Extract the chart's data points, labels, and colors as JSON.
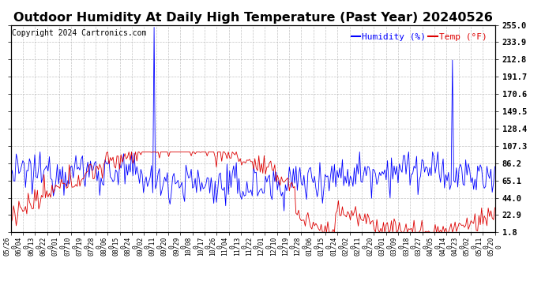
{
  "title": "Outdoor Humidity At Daily High Temperature (Past Year) 20240526",
  "copyright": "Copyright 2024 Cartronics.com",
  "legend_humidity": "Humidity (%)",
  "legend_temp": "Temp (°F)",
  "humidity_color": "#0000ff",
  "temp_color": "#dd0000",
  "background_color": "#ffffff",
  "grid_color": "#aaaaaa",
  "yticks_right": [
    255.0,
    233.9,
    212.8,
    191.7,
    170.6,
    149.5,
    128.4,
    107.3,
    86.2,
    65.1,
    44.0,
    22.9,
    1.8
  ],
  "ylim": [
    1.8,
    255.0
  ],
  "title_fontsize": 11.5,
  "copyright_fontsize": 7,
  "legend_fontsize": 8,
  "tick_fontsize": 7.5,
  "xtick_labels": [
    "05/26\n0",
    "06/04\n0",
    "06/13\n0",
    "06/22\n0",
    "07/01\n0",
    "07/10\n0",
    "07/19\n0",
    "07/28\n0",
    "08/06\n0",
    "08/15\n0",
    "08/24\n0",
    "09/02\n0",
    "09/11\n0",
    "09/20\n0",
    "09/29\n0",
    "10/08\n0",
    "10/17\n0",
    "10/26\n0",
    "11/04\n0",
    "11/13\n0",
    "11/22\n0",
    "12/01\n0",
    "12/10\n0",
    "12/19\n0",
    "12/28\n0",
    "01/06\n0",
    "01/15\n0",
    "01/24\n0",
    "02/02\n0",
    "02/11\n0",
    "02/20\n0",
    "03/01\n0",
    "03/09\n0",
    "03/18\n0",
    "03/27\n0",
    "04/05\n0",
    "04/14\n0",
    "04/23\n0",
    "05/02\n0",
    "05/11\n0",
    "05/20\n0"
  ],
  "num_points": 366,
  "humidity_spike1_idx": 108,
  "humidity_spike2_idx": 333,
  "spike_val": 252,
  "seed": 12345
}
